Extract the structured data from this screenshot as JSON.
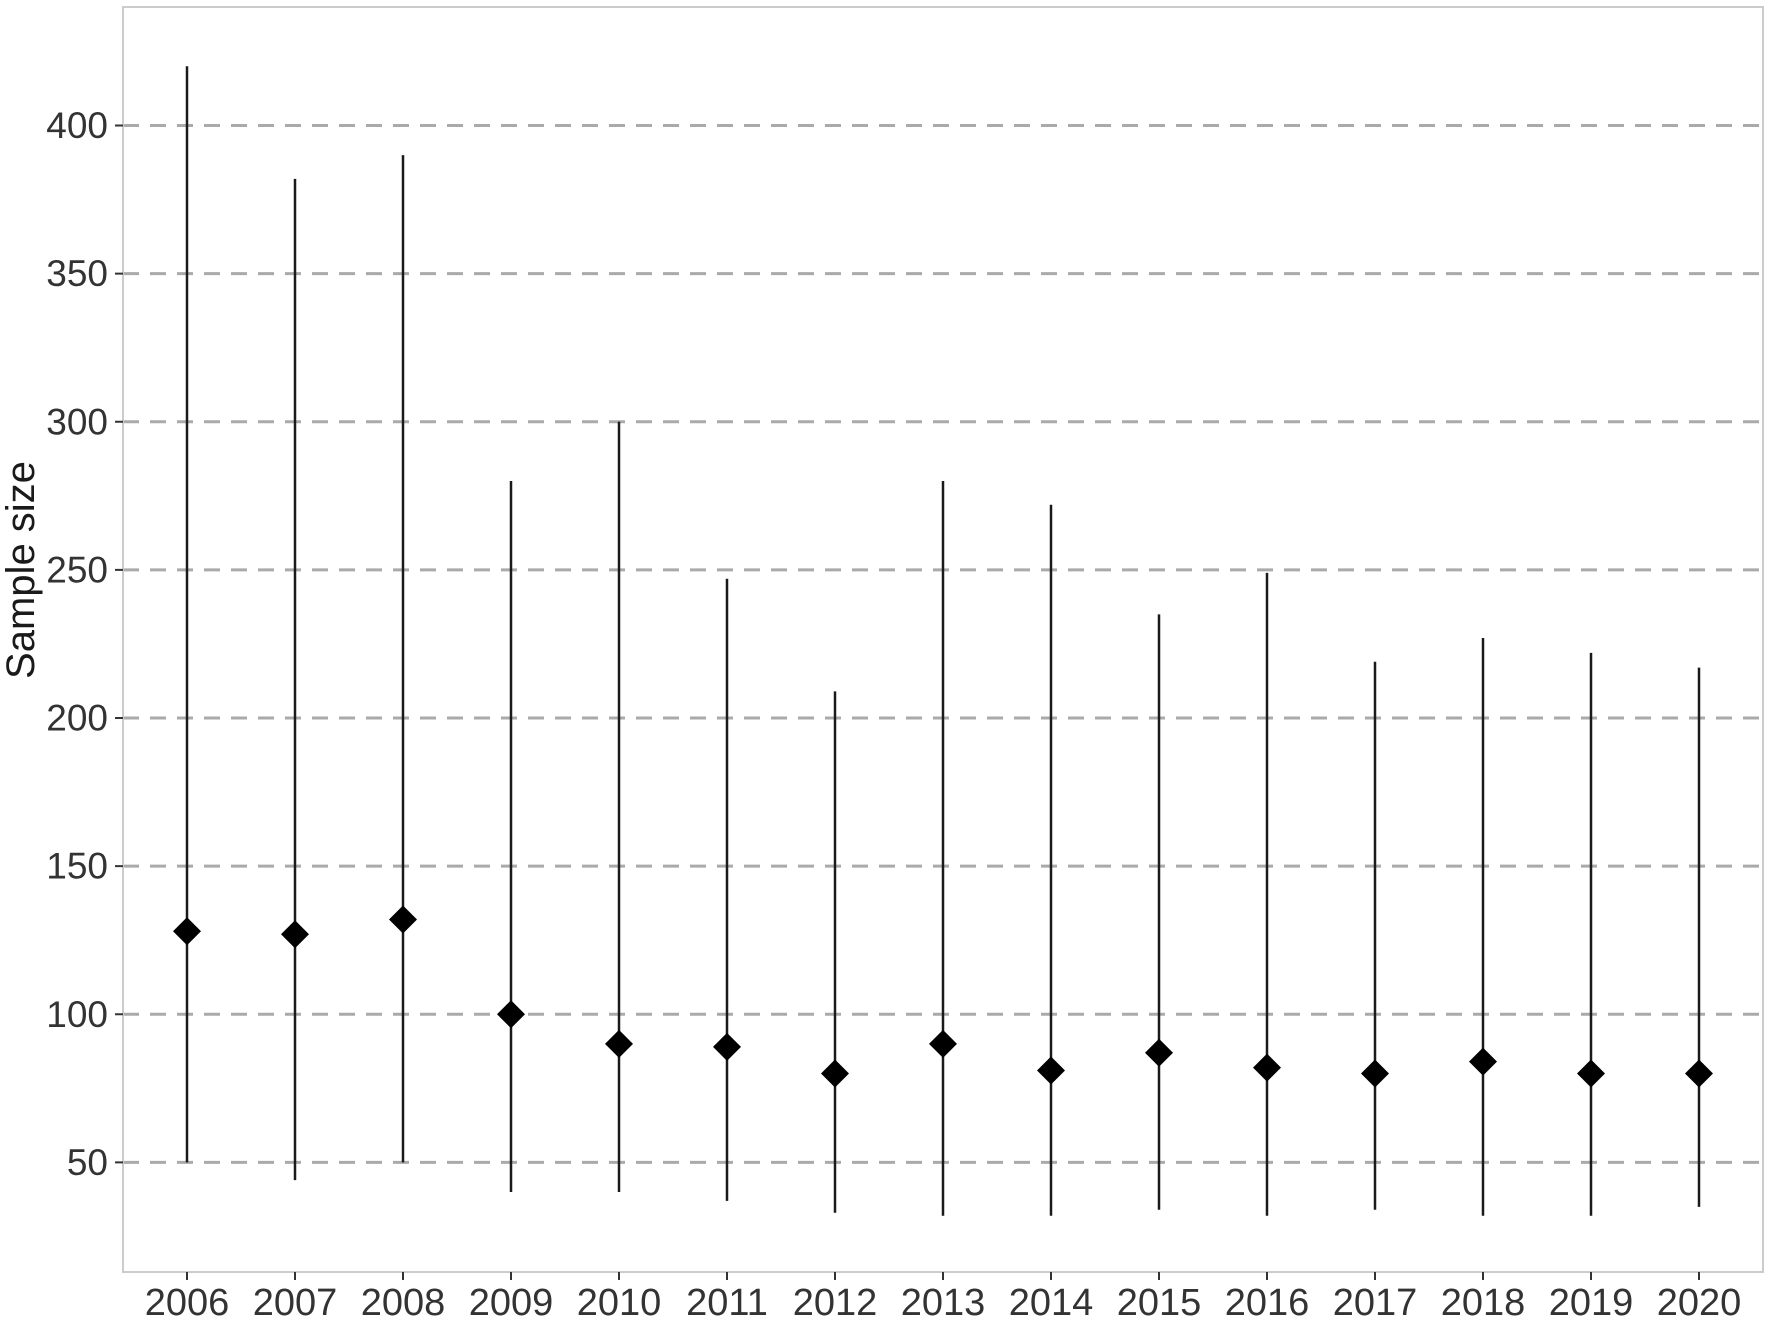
{
  "chart_data": {
    "type": "scatter",
    "subtype": "point-range",
    "title": "",
    "xlabel": "",
    "ylabel": "Sample size",
    "categories": [
      "2006",
      "2007",
      "2008",
      "2009",
      "2010",
      "2011",
      "2012",
      "2013",
      "2014",
      "2015",
      "2016",
      "2017",
      "2018",
      "2019",
      "2020"
    ],
    "series": [
      {
        "name": "median",
        "marker": "diamond",
        "values": [
          128,
          127,
          132,
          100,
          90,
          89,
          80,
          90,
          81,
          87,
          82,
          80,
          84,
          80,
          80
        ]
      },
      {
        "name": "min",
        "marker": "range-low",
        "values": [
          50,
          44,
          50,
          40,
          40,
          37,
          33,
          32,
          32,
          34,
          32,
          34,
          32,
          32,
          35
        ]
      },
      {
        "name": "max",
        "marker": "range-high",
        "values": [
          420,
          382,
          390,
          280,
          300,
          247,
          209,
          280,
          272,
          235,
          249,
          219,
          227,
          222,
          217
        ]
      }
    ],
    "yticks": [
      50,
      100,
      150,
      200,
      250,
      300,
      350,
      400
    ],
    "ylim": [
      13,
      440
    ],
    "grid": "horizontal-dashed",
    "legend": "none",
    "style": {
      "marker_color": "#000000",
      "line_color": "#1a1a1a",
      "grid_color": "#aaaaaa",
      "panel_border_color": "#cccccc",
      "tick_color": "#333333",
      "text_color": "#333333",
      "background": "#ffffff"
    }
  }
}
